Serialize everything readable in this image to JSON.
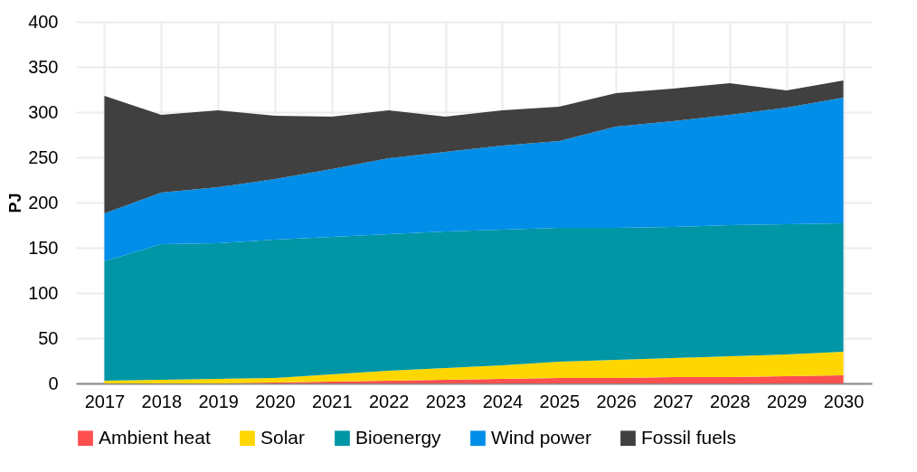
{
  "chart_data": {
    "type": "area",
    "stacked": true,
    "ylabel": "PJ",
    "categories": [
      "2017",
      "2018",
      "2019",
      "2020",
      "2021",
      "2022",
      "2023",
      "2024",
      "2025",
      "2026",
      "2027",
      "2028",
      "2029",
      "2030"
    ],
    "ylim": [
      0,
      400
    ],
    "yticks": [
      0,
      50,
      100,
      150,
      200,
      250,
      300,
      350,
      400
    ],
    "grid": true,
    "legend": "bottom",
    "series": [
      {
        "name": "Ambient heat",
        "color": "#ff5050",
        "values": [
          0,
          0,
          0,
          1,
          2,
          3,
          4,
          5,
          6,
          6,
          7,
          7,
          8,
          9
        ]
      },
      {
        "name": "Solar",
        "color": "#ffd700",
        "values": [
          3,
          4,
          5,
          5,
          8,
          11,
          13,
          15,
          18,
          20,
          21,
          23,
          24,
          26
        ]
      },
      {
        "name": "Bioenergy",
        "color": "#0096a5",
        "values": [
          132,
          150,
          150,
          153,
          152,
          151,
          151,
          150,
          148,
          146,
          145,
          145,
          144,
          142
        ]
      },
      {
        "name": "Wind power",
        "color": "#008ee8",
        "values": [
          53,
          57,
          62,
          67,
          75,
          84,
          88,
          93,
          96,
          112,
          117,
          122,
          129,
          139
        ]
      },
      {
        "name": "Fossil fuels",
        "color": "#404040",
        "values": [
          130,
          86,
          85,
          70,
          58,
          53,
          39,
          39,
          38,
          37,
          36,
          35,
          19,
          19
        ]
      }
    ]
  }
}
